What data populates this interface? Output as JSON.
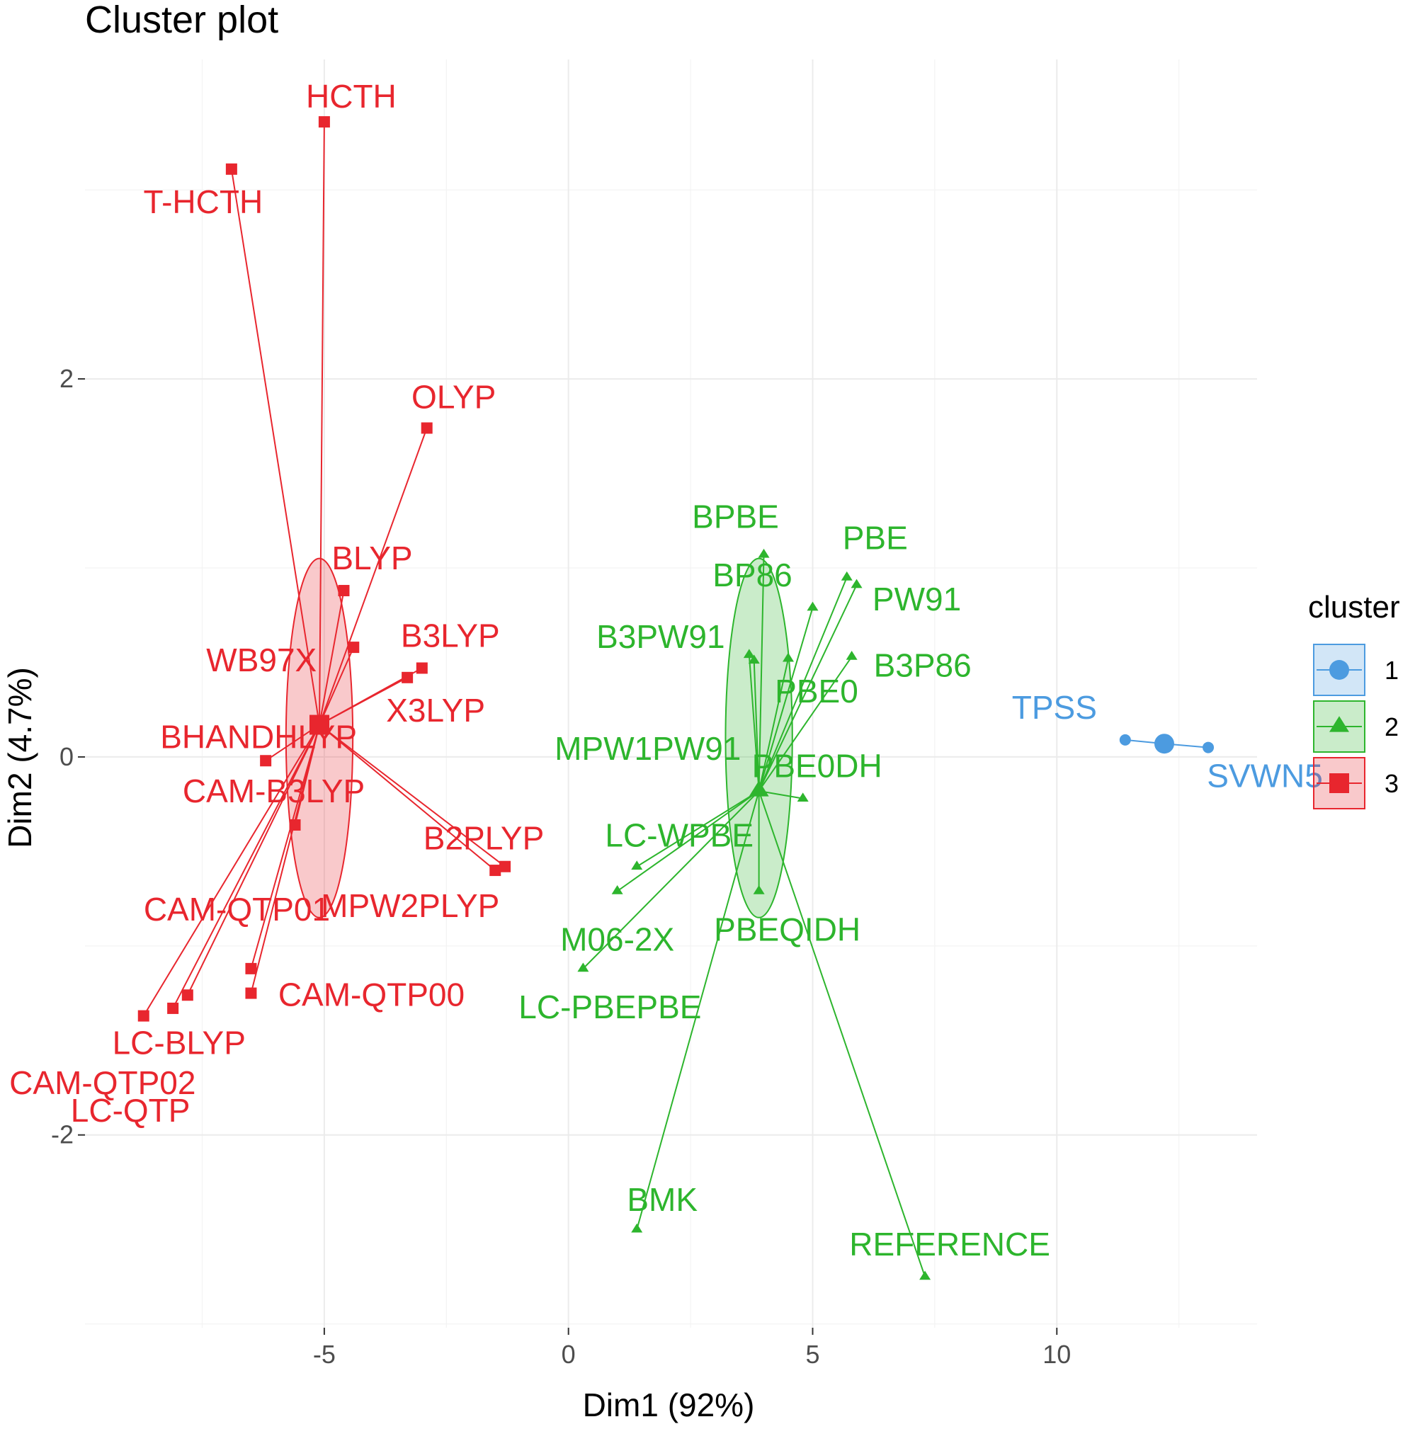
{
  "chart_data": {
    "type": "scatter",
    "title": "Cluster plot",
    "xlabel": "Dim1 (92%)",
    "ylabel": "Dim2 (4.7%)",
    "xlim": [
      -9.9,
      14.1
    ],
    "ylim": [
      -3.02,
      3.69
    ],
    "x_ticks": [
      -5,
      0,
      5,
      10
    ],
    "x_tick_labels": [
      "-5",
      "0",
      "5",
      "10"
    ],
    "y_ticks": [
      -2,
      0,
      2
    ],
    "y_tick_labels": [
      "-2",
      "0",
      "2"
    ],
    "grid": true,
    "legend": {
      "title": "cluster",
      "placement": "right",
      "entries": [
        "1",
        "2",
        "3"
      ]
    },
    "colors": {
      "1": "#4c9be0",
      "2": "#2db52d",
      "3": "#e8262e"
    },
    "series": [
      {
        "cluster": "1",
        "shape": "circle",
        "center": [
          12.2,
          0.07
        ],
        "ellipse": null,
        "points": [
          {
            "label": "TPSS",
            "x": 11.4,
            "y": 0.09
          },
          {
            "label": "SVWN5",
            "x": 13.1,
            "y": 0.05
          }
        ]
      },
      {
        "cluster": "2",
        "shape": "triangle",
        "center": [
          3.9,
          -0.18
        ],
        "ellipse": {
          "cx": 3.9,
          "cy": 0.1,
          "rx": 0.95,
          "ry": 0.95
        },
        "points": [
          {
            "label": "BPBE",
            "x": 4.0,
            "y": 1.07
          },
          {
            "label": "PBE",
            "x": 5.7,
            "y": 0.95
          },
          {
            "label": "BP86",
            "x": 5.0,
            "y": 0.79
          },
          {
            "label": "PW91",
            "x": 5.9,
            "y": 0.91
          },
          {
            "label": "B3PW91",
            "x": 3.7,
            "y": 0.54
          },
          {
            "label": "B3P86",
            "x": 5.8,
            "y": 0.53
          },
          {
            "label": "PBE0",
            "x": 4.5,
            "y": 0.52
          },
          {
            "label": "MPW1PW91",
            "x": 3.8,
            "y": 0.51
          },
          {
            "label": "PBE0DH",
            "x": 4.8,
            "y": -0.22
          },
          {
            "label": "LC-WPBE",
            "x": 1.4,
            "y": -0.58
          },
          {
            "label": "M06-2X",
            "x": 1.0,
            "y": -0.71
          },
          {
            "label": "PBEQIDH",
            "x": 3.9,
            "y": -0.71
          },
          {
            "label": "LC-PBEPBE",
            "x": 0.3,
            "y": -1.12
          },
          {
            "label": "BMK",
            "x": 1.4,
            "y": -2.5
          },
          {
            "label": "REFERENCE",
            "x": 7.3,
            "y": -2.75
          }
        ]
      },
      {
        "cluster": "3",
        "shape": "square",
        "center": [
          -5.1,
          0.17
        ],
        "ellipse": {
          "cx": -5.1,
          "cy": 0.1,
          "rx": 0.95,
          "ry": 0.95
        },
        "points": [
          {
            "label": "HCTH",
            "x": -5.0,
            "y": 3.36
          },
          {
            "label": "T-HCTH",
            "x": -6.9,
            "y": 3.11
          },
          {
            "label": "OLYP",
            "x": -2.9,
            "y": 1.74
          },
          {
            "label": "BLYP",
            "x": -4.6,
            "y": 0.88
          },
          {
            "label": "WB97X",
            "x": -4.4,
            "y": 0.58
          },
          {
            "label": "B3LYP",
            "x": -3.0,
            "y": 0.47
          },
          {
            "label": "X3LYP",
            "x": -3.3,
            "y": 0.42
          },
          {
            "label": "BHANDHLYP",
            "x": -6.2,
            "y": -0.02
          },
          {
            "label": "CAM-B3LYP",
            "x": -5.6,
            "y": -0.36
          },
          {
            "label": "B2PLYP",
            "x": -1.3,
            "y": -0.58
          },
          {
            "label": "MPW2PLYP",
            "x": -1.5,
            "y": -0.6
          },
          {
            "label": "CAM-QTP01",
            "x": -6.5,
            "y": -1.12
          },
          {
            "label": "CAM-QTP02",
            "x": -7.8,
            "y": -1.26
          },
          {
            "label": "CAM-QTP00",
            "x": -6.5,
            "y": -1.25
          },
          {
            "label": "LC-BLYP",
            "x": -8.7,
            "y": -1.37
          },
          {
            "label": "LC-QTP",
            "x": -8.1,
            "y": -1.33
          }
        ]
      }
    ]
  }
}
